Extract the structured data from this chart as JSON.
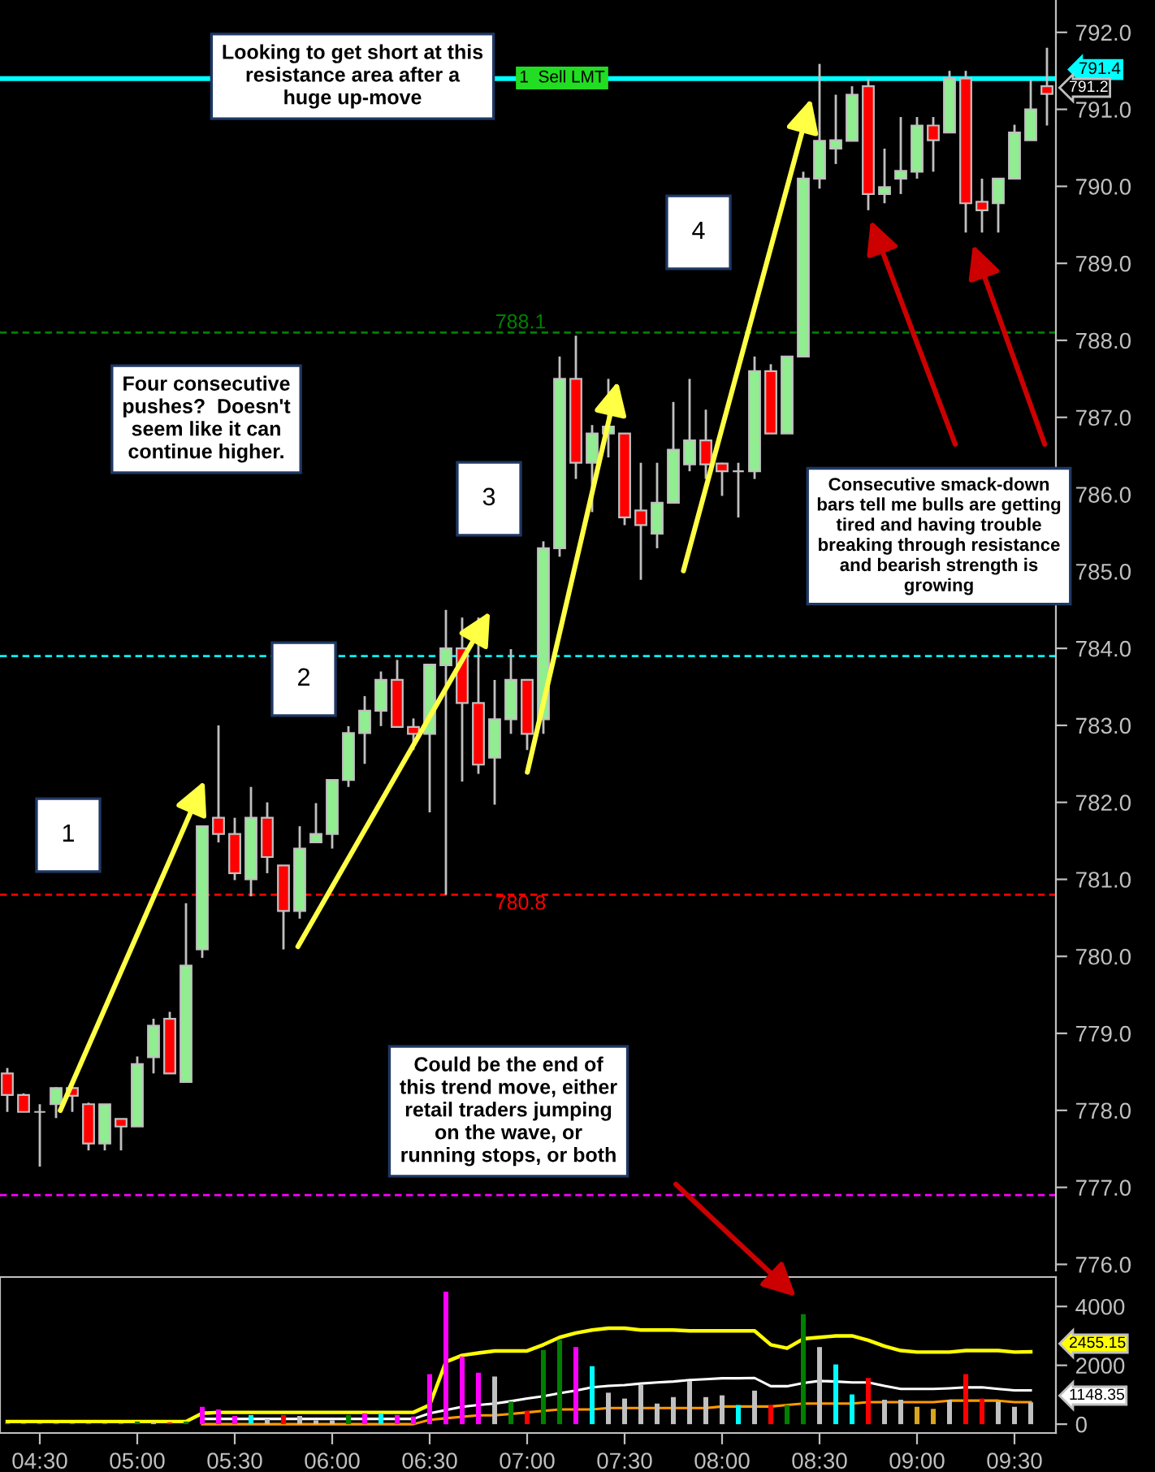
{
  "chart_data": [
    {
      "type": "candlestick",
      "categories": [
        null,
        null,
        null,
        null,
        null,
        null,
        null,
        null,
        null,
        null,
        null,
        null,
        null,
        null,
        null,
        null,
        null,
        null,
        null,
        null,
        null,
        null,
        null,
        null,
        null,
        null,
        null,
        null,
        null,
        null,
        null,
        null,
        null,
        null,
        null,
        null,
        null,
        null,
        null,
        null,
        null,
        null,
        null,
        null,
        null,
        null,
        null,
        null,
        null,
        null,
        null,
        null,
        null,
        null,
        null,
        null,
        null,
        null,
        null,
        null,
        null,
        null,
        null,
        null,
        null
      ],
      "ohlc": [
        [
          778.48,
          778.55,
          777.98,
          778.2
        ],
        [
          778.2,
          778.22,
          777.98,
          777.98
        ],
        [
          777.98,
          778.08,
          777.27,
          777.98
        ],
        [
          778.08,
          778.3,
          777.9,
          778.29
        ],
        [
          778.29,
          778.3,
          777.98,
          778.19
        ],
        [
          778.08,
          778.1,
          777.48,
          777.57
        ],
        [
          777.57,
          778.08,
          777.48,
          778.08
        ],
        [
          777.89,
          777.89,
          777.48,
          777.79
        ],
        [
          777.79,
          778.7,
          777.79,
          778.6
        ],
        [
          778.69,
          779.19,
          778.48,
          779.1
        ],
        [
          779.19,
          779.28,
          778.48,
          778.48
        ],
        [
          778.37,
          780.69,
          778.37,
          779.88
        ],
        [
          780.09,
          781.69,
          779.98,
          781.69
        ],
        [
          781.8,
          783.0,
          781.48,
          781.59
        ],
        [
          781.59,
          781.8,
          780.99,
          781.08
        ],
        [
          781.0,
          782.2,
          780.78,
          781.8
        ],
        [
          781.8,
          782.0,
          781.08,
          781.29
        ],
        [
          781.18,
          781.18,
          780.09,
          780.59
        ],
        [
          780.59,
          781.69,
          780.49,
          781.4
        ],
        [
          781.48,
          781.99,
          781.48,
          781.59
        ],
        [
          781.59,
          782.29,
          781.4,
          782.29
        ],
        [
          782.29,
          782.99,
          782.2,
          782.9
        ],
        [
          782.9,
          783.38,
          782.5,
          783.19
        ],
        [
          783.19,
          783.7,
          782.99,
          783.59
        ],
        [
          783.59,
          783.85,
          782.98,
          782.98
        ],
        [
          782.98,
          783.09,
          782.68,
          782.89
        ],
        [
          782.89,
          783.79,
          781.87,
          783.79
        ],
        [
          783.78,
          784.5,
          780.8,
          784.0
        ],
        [
          784.0,
          784.4,
          782.27,
          783.29
        ],
        [
          783.29,
          784.4,
          782.37,
          782.49
        ],
        [
          782.58,
          783.59,
          781.97,
          783.08
        ],
        [
          783.08,
          783.99,
          782.89,
          783.59
        ],
        [
          783.59,
          783.59,
          782.68,
          782.89
        ],
        [
          783.08,
          785.39,
          782.89,
          785.3
        ],
        [
          785.3,
          787.79,
          785.19,
          787.5
        ],
        [
          787.5,
          788.06,
          786.2,
          786.41
        ],
        [
          786.41,
          786.9,
          785.77,
          786.79
        ],
        [
          786.79,
          787.5,
          786.48,
          786.88
        ],
        [
          786.79,
          786.79,
          785.6,
          785.7
        ],
        [
          785.79,
          786.41,
          784.89,
          785.6
        ],
        [
          785.49,
          786.41,
          785.3,
          785.89
        ],
        [
          785.89,
          787.2,
          785.89,
          786.58
        ],
        [
          786.39,
          787.5,
          786.3,
          786.7
        ],
        [
          786.7,
          787.1,
          786.2,
          786.39
        ],
        [
          786.4,
          786.41,
          785.98,
          786.3
        ],
        [
          786.3,
          786.41,
          785.7,
          786.3
        ],
        [
          786.3,
          787.79,
          786.2,
          787.6
        ],
        [
          787.6,
          787.69,
          786.79,
          786.79
        ],
        [
          786.79,
          787.79,
          786.79,
          787.79
        ],
        [
          787.79,
          790.19,
          787.79,
          790.1
        ],
        [
          790.1,
          791.59,
          789.97,
          790.59
        ],
        [
          790.49,
          791.19,
          790.29,
          790.6
        ],
        [
          790.59,
          791.3,
          790.59,
          791.19
        ],
        [
          791.3,
          791.4,
          789.69,
          789.9
        ],
        [
          789.9,
          790.49,
          789.78,
          789.99
        ],
        [
          790.1,
          790.9,
          789.9,
          790.2
        ],
        [
          790.19,
          790.9,
          790.1,
          790.79
        ],
        [
          790.79,
          790.9,
          790.19,
          790.6
        ],
        [
          790.7,
          791.5,
          790.7,
          791.4
        ],
        [
          791.4,
          791.5,
          789.4,
          789.78
        ],
        [
          789.8,
          790.1,
          789.4,
          789.69
        ],
        [
          789.78,
          790.1,
          789.4,
          790.1
        ],
        [
          790.1,
          790.8,
          790.1,
          790.7
        ],
        [
          790.6,
          791.38,
          790.6,
          791.0
        ],
        [
          791.3,
          791.8,
          790.79,
          791.2
        ]
      ],
      "colors": [
        "#ff0000",
        "#ff0000",
        "#c0c0c0",
        "#90ee90",
        "#ff0000",
        "#ff0000",
        "#90ee90",
        "#ff0000",
        "#90ee90",
        "#90ee90",
        "#ff0000",
        "#90ee90",
        "#90ee90",
        "#ff0000",
        "#ff0000",
        "#90ee90",
        "#ff0000",
        "#ff0000",
        "#90ee90",
        "#90ee90",
        "#90ee90",
        "#90ee90",
        "#90ee90",
        "#90ee90",
        "#ff0000",
        "#ff0000",
        "#90ee90",
        "#90ee90",
        "#ff0000",
        "#ff0000",
        "#90ee90",
        "#90ee90",
        "#ff0000",
        "#90ee90",
        "#90ee90",
        "#ff0000",
        "#90ee90",
        "#90ee90",
        "#ff0000",
        "#ff0000",
        "#90ee90",
        "#90ee90",
        "#90ee90",
        "#ff0000",
        "#ff0000",
        "#c0c0c0",
        "#90ee90",
        "#ff0000",
        "#90ee90",
        "#90ee90",
        "#90ee90",
        "#90ee90",
        "#90ee90",
        "#ff0000",
        "#90ee90",
        "#90ee90",
        "#90ee90",
        "#ff0000",
        "#90ee90",
        "#ff0000",
        "#ff0000",
        "#90ee90",
        "#90ee90",
        "#90ee90",
        "#ff0000"
      ],
      "ylim": [
        775.92,
        792.42
      ],
      "yticks": [
        {
          "value": 776,
          "label": "776.0"
        },
        {
          "value": 777,
          "label": "777.0"
        },
        {
          "value": 778,
          "label": "778.0"
        },
        {
          "value": 779,
          "label": "779.0"
        },
        {
          "value": 780,
          "label": "780.0"
        },
        {
          "value": 781,
          "label": "781.0"
        },
        {
          "value": 782,
          "label": "782.0"
        },
        {
          "value": 783,
          "label": "783.0"
        },
        {
          "value": 784,
          "label": "784.0"
        },
        {
          "value": 785,
          "label": "785.0"
        },
        {
          "value": 786,
          "label": "786.0"
        },
        {
          "value": 787,
          "label": "787.0"
        },
        {
          "value": 788,
          "label": "788.0"
        },
        {
          "value": 789,
          "label": "789.0"
        },
        {
          "value": 790,
          "label": "790.0"
        },
        {
          "value": 791,
          "label": "791.0"
        },
        {
          "value": 792,
          "label": "792.0"
        }
      ],
      "tick_labels": "y",
      "ref_lines": [
        {
          "axis": "y",
          "value": 791.4,
          "label": "791.4",
          "color": "#00ffff",
          "line_style": "solid"
        },
        {
          "axis": "y",
          "value": 783.9,
          "color": "#00ffff",
          "line_style": "dashed"
        },
        {
          "axis": "y",
          "value": 788.1,
          "label": "788.1",
          "color": "#008000",
          "line_style": "dashed"
        },
        {
          "axis": "y",
          "value": 780.8,
          "label": "780.8",
          "color": "#ff0000",
          "line_style": "dashed"
        },
        {
          "axis": "y",
          "value": 776.9,
          "color": "#ff00ff",
          "line_style": "dashed"
        }
      ],
      "annotations": [
        "1",
        "2",
        "3",
        "4",
        "Looking to get short at this\nresistance area after a\nhuge up-move",
        "Four consecutive\npushes?  Doesn't\nseem like it can\ncontinue higher.",
        "Consecutive smack-down\nbars tell me bulls are getting\ntired and having trouble\nbreaking through resistance\nand bearish strength is\ngrowing",
        "Could be the end of\nthis trend move, either\nretail traders jumping\non the wave, or\nrunning stops, or both",
        "1  Sell LMT",
        "791.2"
      ]
    },
    {
      "type": "bar",
      "categories": [
        null,
        null,
        "04:30",
        null,
        null,
        null,
        null,
        null,
        "05:00",
        null,
        null,
        null,
        null,
        null,
        "05:30",
        null,
        null,
        null,
        null,
        null,
        "06:00",
        null,
        null,
        null,
        null,
        null,
        "06:30",
        null,
        null,
        null,
        null,
        null,
        "07:00",
        null,
        null,
        null,
        null,
        null,
        "07:30",
        null,
        null,
        null,
        null,
        null,
        "08:00",
        null,
        null,
        null,
        null,
        null,
        "08:30",
        null,
        null,
        null,
        null,
        null,
        "09:00",
        null,
        null,
        null,
        null,
        null,
        "09:30",
        null,
        null
      ],
      "series": [
        {
          "type": "bar",
          "values": [
            20,
            20,
            20,
            20,
            20,
            20,
            20,
            20,
            90,
            60,
            60,
            90,
            590,
            500,
            280,
            310,
            180,
            310,
            280,
            130,
            130,
            310,
            370,
            370,
            310,
            260,
            1700,
            4500,
            2300,
            1750,
            1620,
            770,
            460,
            2520,
            2860,
            2620,
            1970,
            1070,
            870,
            1330,
            700,
            920,
            1470,
            920,
            980,
            650,
            1140,
            650,
            650,
            3740,
            2620,
            2030,
            1010,
            1570,
            830,
            830,
            590,
            520,
            830,
            1700,
            870,
            770,
            590,
            740,
            null
          ],
          "colors": [
            "#808080",
            "#808080",
            "#808080",
            "#808080",
            "#808080",
            "#808080",
            "#808080",
            "#808080",
            "#008000",
            "#c0c0c0",
            "#ff0000",
            "#008000",
            "#ff00ff",
            "#ff00ff",
            "#ff00ff",
            "#00ffff",
            "#c0c0c0",
            "#ff0000",
            "#c0c0c0",
            "#c0c0c0",
            "#c0c0c0",
            "#008000",
            "#ff00ff",
            "#00ffff",
            "#ff00ff",
            "#ff00ff",
            "#ff00ff",
            "#ff00ff",
            "#ff00ff",
            "#ff00ff",
            "#c0c0c0",
            "#008000",
            "#ff0000",
            "#008000",
            "#008000",
            "#ff00ff",
            "#00ffff",
            "#c0c0c0",
            "#c0c0c0",
            "#c0c0c0",
            "#c0c0c0",
            "#c0c0c0",
            "#c0c0c0",
            "#c0c0c0",
            "#c0c0c0",
            "#00ffff",
            "#c0c0c0",
            "#ff0000",
            "#008000",
            "#008000",
            "#c0c0c0",
            "#00ffff",
            "#00ffff",
            "#ff0000",
            "#c0c0c0",
            "#c0c0c0",
            "#daa520",
            "#daa520",
            "#c0c0c0",
            "#ff0000",
            "#ff0000",
            "#c0c0c0",
            "#c0c0c0",
            "#c0c0c0",
            "#c0c0c0"
          ]
        },
        {
          "type": "line",
          "color": "#ffff00",
          "values": [
            90,
            90,
            90,
            90,
            90,
            90,
            90,
            90,
            90,
            90,
            90,
            90,
            370,
            400,
            400,
            400,
            400,
            400,
            400,
            400,
            400,
            400,
            400,
            400,
            400,
            400,
            650,
            2120,
            2340,
            2420,
            2490,
            2490,
            2490,
            2700,
            2950,
            3100,
            3200,
            3260,
            3260,
            3200,
            3200,
            3200,
            3170,
            3170,
            3170,
            3170,
            3170,
            2700,
            2580,
            2900,
            2950,
            3000,
            3000,
            2850,
            2650,
            2500,
            2450,
            2450,
            2450,
            2500,
            2500,
            2500,
            2450,
            2460,
            null
          ]
        },
        {
          "type": "line",
          "color": "#ffffff",
          "values": [
            null,
            null,
            null,
            null,
            null,
            null,
            null,
            null,
            null,
            null,
            null,
            null,
            180,
            180,
            180,
            180,
            180,
            180,
            180,
            180,
            180,
            180,
            180,
            180,
            180,
            180,
            370,
            480,
            590,
            650,
            700,
            780,
            870,
            950,
            1050,
            1140,
            1250,
            1300,
            1330,
            1380,
            1420,
            1450,
            1500,
            1530,
            1560,
            1560,
            1570,
            1290,
            1290,
            1400,
            1470,
            1450,
            1420,
            1420,
            1300,
            1200,
            1200,
            1200,
            1220,
            1250,
            1250,
            1200,
            1150,
            1150,
            null
          ]
        },
        {
          "type": "line",
          "color": "#ff9900",
          "values": [
            null,
            null,
            null,
            null,
            null,
            null,
            null,
            null,
            null,
            null,
            null,
            null,
            0,
            0,
            0,
            0,
            0,
            0,
            0,
            0,
            0,
            0,
            0,
            0,
            0,
            0,
            150,
            200,
            250,
            300,
            300,
            350,
            400,
            450,
            500,
            500,
            500,
            550,
            550,
            550,
            550,
            550,
            550,
            550,
            600,
            600,
            600,
            600,
            650,
            700,
            700,
            700,
            700,
            750,
            750,
            750,
            750,
            750,
            800,
            800,
            800,
            800,
            750,
            750,
            null
          ]
        }
      ],
      "ylim": [
        -300,
        5000
      ],
      "yticks": [
        0,
        2000,
        4000
      ],
      "annotations": [
        "2455.15",
        "1148.35"
      ]
    }
  ]
}
